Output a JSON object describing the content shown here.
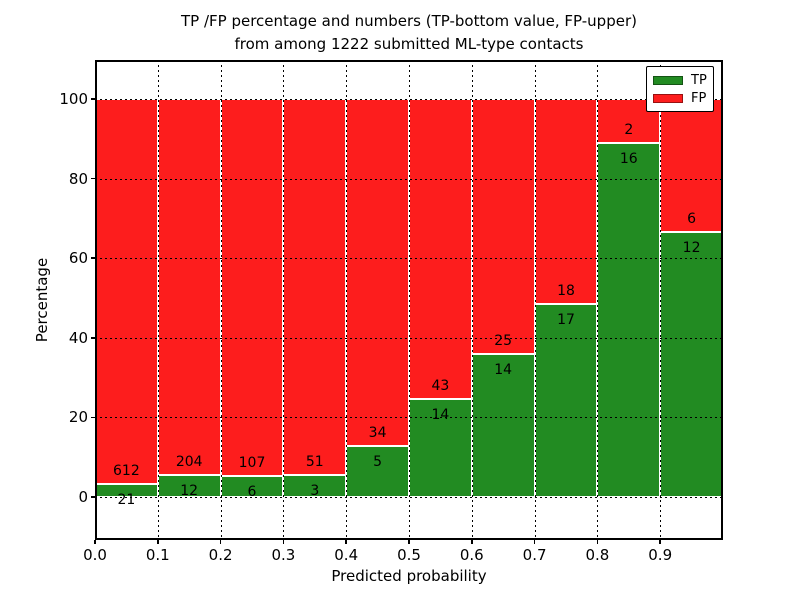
{
  "figure": {
    "title_line1": "TP /FP percentage and numbers (TP-bottom value, FP-upper)",
    "title_line2": "from among 1222 submitted ML-type contacts",
    "xlabel": "Predicted probability",
    "ylabel": "Percentage",
    "background": "#ffffff",
    "frame_color": "#000000"
  },
  "chart_data": {
    "type": "bar",
    "subtype": "stacked-normalized-to-100-percent",
    "title": "TP /FP percentage and numbers (TP-bottom value, FP-upper) from among 1222 submitted ML-type contacts",
    "xlabel": "Predicted probability",
    "ylabel": "Percentage",
    "total_contacts": 1222,
    "xlim": [
      0.0,
      1.0
    ],
    "ylim": [
      0,
      100
    ],
    "bin_width": 0.1,
    "categories": [
      "0.0-0.1",
      "0.1-0.2",
      "0.2-0.3",
      "0.3-0.4",
      "0.4-0.5",
      "0.5-0.6",
      "0.6-0.7",
      "0.7-0.8",
      "0.8-0.9",
      "0.9-1.0"
    ],
    "x_tick_labels": [
      "0.0",
      "0.1",
      "0.2",
      "0.3",
      "0.4",
      "0.5",
      "0.6",
      "0.7",
      "0.8",
      "0.9"
    ],
    "y_ticks": [
      0,
      20,
      40,
      60,
      80,
      100
    ],
    "grid": {
      "style": "dotted",
      "color": "#000000",
      "on": true
    },
    "bar_edge_color": "#ffffff",
    "series": [
      {
        "name": "TP",
        "color": "#228b22",
        "stack_position": "bottom",
        "values": [
          21,
          12,
          6,
          3,
          5,
          14,
          14,
          17,
          16,
          12
        ]
      },
      {
        "name": "FP",
        "color": "#fd1d1d",
        "stack_position": "top",
        "values": [
          612,
          204,
          107,
          51,
          34,
          43,
          25,
          18,
          2,
          6
        ]
      }
    ],
    "tp_percent_by_bin": [
      3.3,
      5.6,
      5.3,
      5.6,
      12.8,
      24.6,
      35.9,
      48.6,
      88.9,
      66.7
    ],
    "legend": {
      "position": "upper-right",
      "entries": [
        "TP",
        "FP"
      ]
    }
  }
}
